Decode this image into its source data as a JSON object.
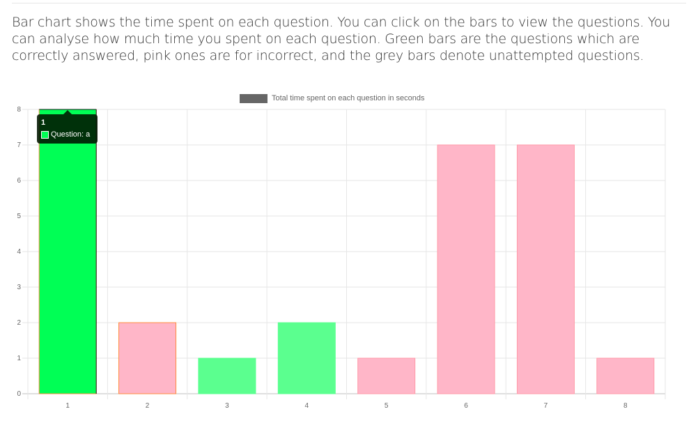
{
  "description": "Bar chart shows the time spent on each question. You can click on the bars to view the questions. You can analyse how much time you spent on each question. Green bars are the questions which are correctly answered, pink ones are for incorrect, and the grey bars denote unattempted questions.",
  "colors": {
    "correct": "#5bff8f",
    "correct_active": "#00ff55",
    "incorrect": "#ffb6c8",
    "incorrect_border": "#ff9aa8",
    "highlight_border": "#ff8a3d",
    "legend_box": "#666666",
    "grid": "#e6e6e6"
  },
  "tooltip": {
    "title": "1",
    "label": "Question: a"
  },
  "chart_data": {
    "type": "bar",
    "legend_position": "top-center",
    "grid": true,
    "categories": [
      "1",
      "2",
      "3",
      "4",
      "5",
      "6",
      "7",
      "8"
    ],
    "series": [
      {
        "name": "Total time spent on each question in seconds",
        "values": [
          8,
          2,
          1,
          2,
          1,
          7,
          7,
          1
        ],
        "status": [
          "correct",
          "incorrect",
          "correct",
          "correct",
          "incorrect",
          "incorrect",
          "incorrect",
          "incorrect"
        ]
      }
    ],
    "yticks": [
      "0",
      "1",
      "2",
      "3",
      "4",
      "5",
      "6",
      "7",
      "8"
    ],
    "ylim": [
      0,
      8
    ],
    "active_index": 0,
    "highlighted_indices": [
      0,
      1
    ]
  }
}
